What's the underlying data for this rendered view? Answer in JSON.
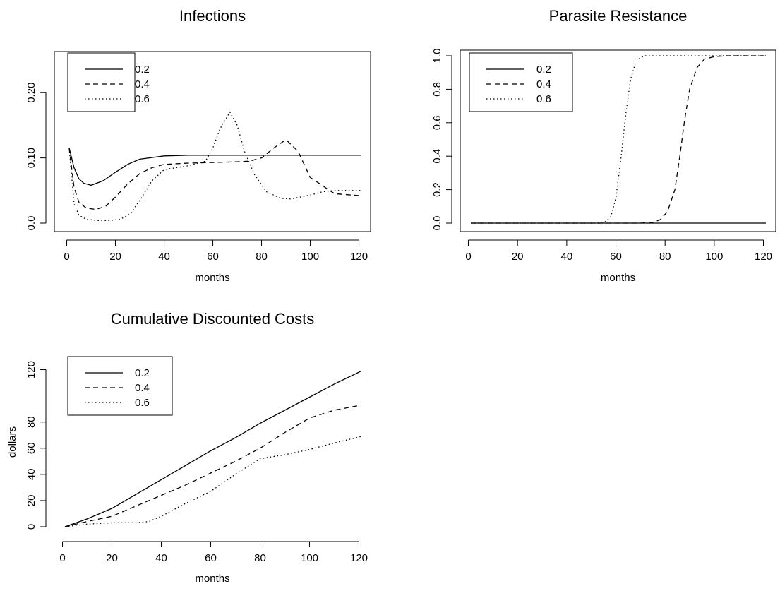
{
  "chart_data": [
    {
      "type": "line",
      "title": "Infections",
      "xlabel": "months",
      "ylabel": "",
      "xlim": [
        1,
        121
      ],
      "ylim": [
        0,
        0.25
      ],
      "xticks": [
        "0",
        "20",
        "40",
        "60",
        "80",
        "100",
        "120"
      ],
      "yticks": [
        "0.0",
        "0.10",
        "0.20"
      ],
      "legend_position": "top-left",
      "series": [
        {
          "name": "0.2",
          "line_style": "solid",
          "x": [
            1,
            3,
            5,
            7,
            10,
            15,
            20,
            25,
            30,
            40,
            50,
            60,
            70,
            80,
            90,
            100,
            110,
            121
          ],
          "y": [
            0.115,
            0.085,
            0.068,
            0.061,
            0.058,
            0.065,
            0.078,
            0.09,
            0.098,
            0.103,
            0.104,
            0.104,
            0.104,
            0.104,
            0.104,
            0.104,
            0.104,
            0.104
          ]
        },
        {
          "name": "0.4",
          "line_style": "dashed",
          "x": [
            1,
            3,
            5,
            8,
            12,
            16,
            20,
            25,
            30,
            35,
            40,
            50,
            60,
            70,
            75,
            80,
            85,
            90,
            95,
            100,
            110,
            121
          ],
          "y": [
            0.115,
            0.055,
            0.032,
            0.023,
            0.021,
            0.026,
            0.04,
            0.06,
            0.076,
            0.085,
            0.09,
            0.092,
            0.093,
            0.094,
            0.095,
            0.1,
            0.115,
            0.128,
            0.11,
            0.07,
            0.045,
            0.042
          ]
        },
        {
          "name": "0.6",
          "line_style": "dotted",
          "x": [
            1,
            3,
            5,
            8,
            12,
            18,
            22,
            26,
            30,
            35,
            40,
            50,
            57,
            60,
            63,
            67,
            70,
            73,
            77,
            82,
            88,
            92,
            96,
            100,
            105,
            110,
            121
          ],
          "y": [
            0.115,
            0.03,
            0.012,
            0.006,
            0.004,
            0.004,
            0.006,
            0.014,
            0.035,
            0.065,
            0.082,
            0.088,
            0.095,
            0.115,
            0.145,
            0.17,
            0.15,
            0.11,
            0.075,
            0.048,
            0.038,
            0.037,
            0.04,
            0.043,
            0.048,
            0.05,
            0.05
          ]
        }
      ]
    },
    {
      "type": "line",
      "title": "Parasite Resistance",
      "xlabel": "months",
      "ylabel": "",
      "xlim": [
        1,
        121
      ],
      "ylim": [
        0,
        1.0
      ],
      "xticks": [
        "0",
        "20",
        "40",
        "60",
        "80",
        "100",
        "120"
      ],
      "yticks": [
        "0.0",
        "0.2",
        "0.4",
        "0.6",
        "0.8",
        "1.0"
      ],
      "legend_position": "top-left",
      "series": [
        {
          "name": "0.2",
          "line_style": "solid",
          "x": [
            1,
            121
          ],
          "y": [
            0,
            0
          ]
        },
        {
          "name": "0.4",
          "line_style": "dashed",
          "x": [
            1,
            70,
            75,
            78,
            81,
            84,
            86,
            88,
            90,
            93,
            96,
            100,
            105,
            121
          ],
          "y": [
            0,
            0,
            0.005,
            0.02,
            0.07,
            0.2,
            0.4,
            0.62,
            0.8,
            0.93,
            0.98,
            0.995,
            1.0,
            1.0
          ]
        },
        {
          "name": "0.6",
          "line_style": "dotted",
          "x": [
            1,
            52,
            56,
            58,
            60,
            62,
            64,
            66,
            68,
            70,
            72,
            75,
            121
          ],
          "y": [
            0,
            0,
            0.01,
            0.04,
            0.15,
            0.38,
            0.65,
            0.86,
            0.96,
            0.99,
            1.0,
            1.0,
            1.0
          ]
        }
      ]
    },
    {
      "type": "line",
      "title": "Cumulative Discounted Costs",
      "xlabel": "months",
      "ylabel": "dollars",
      "xlim": [
        1,
        121
      ],
      "ylim": [
        0,
        130
      ],
      "xticks": [
        "0",
        "20",
        "40",
        "60",
        "80",
        "100",
        "120"
      ],
      "yticks": [
        "0",
        "20",
        "40",
        "60",
        "80",
        "120"
      ],
      "legend_position": "top-left",
      "series": [
        {
          "name": "0.2",
          "line_style": "solid",
          "x": [
            1,
            10,
            20,
            30,
            40,
            50,
            60,
            70,
            80,
            90,
            100,
            110,
            121
          ],
          "y": [
            0,
            6,
            14,
            25,
            36,
            47,
            58,
            68,
            79,
            89,
            99,
            109,
            119
          ]
        },
        {
          "name": "0.4",
          "line_style": "dashed",
          "x": [
            1,
            10,
            20,
            30,
            40,
            50,
            60,
            70,
            80,
            90,
            100,
            110,
            121
          ],
          "y": [
            0,
            4,
            8,
            16,
            24,
            32,
            41,
            50,
            60,
            72,
            83,
            89,
            93
          ]
        },
        {
          "name": "0.6",
          "line_style": "dotted",
          "x": [
            1,
            10,
            20,
            30,
            35,
            40,
            50,
            60,
            70,
            80,
            90,
            100,
            110,
            121
          ],
          "y": [
            0,
            2,
            3,
            3,
            4,
            8,
            18,
            27,
            40,
            52,
            55,
            59,
            64,
            69
          ]
        }
      ]
    }
  ]
}
